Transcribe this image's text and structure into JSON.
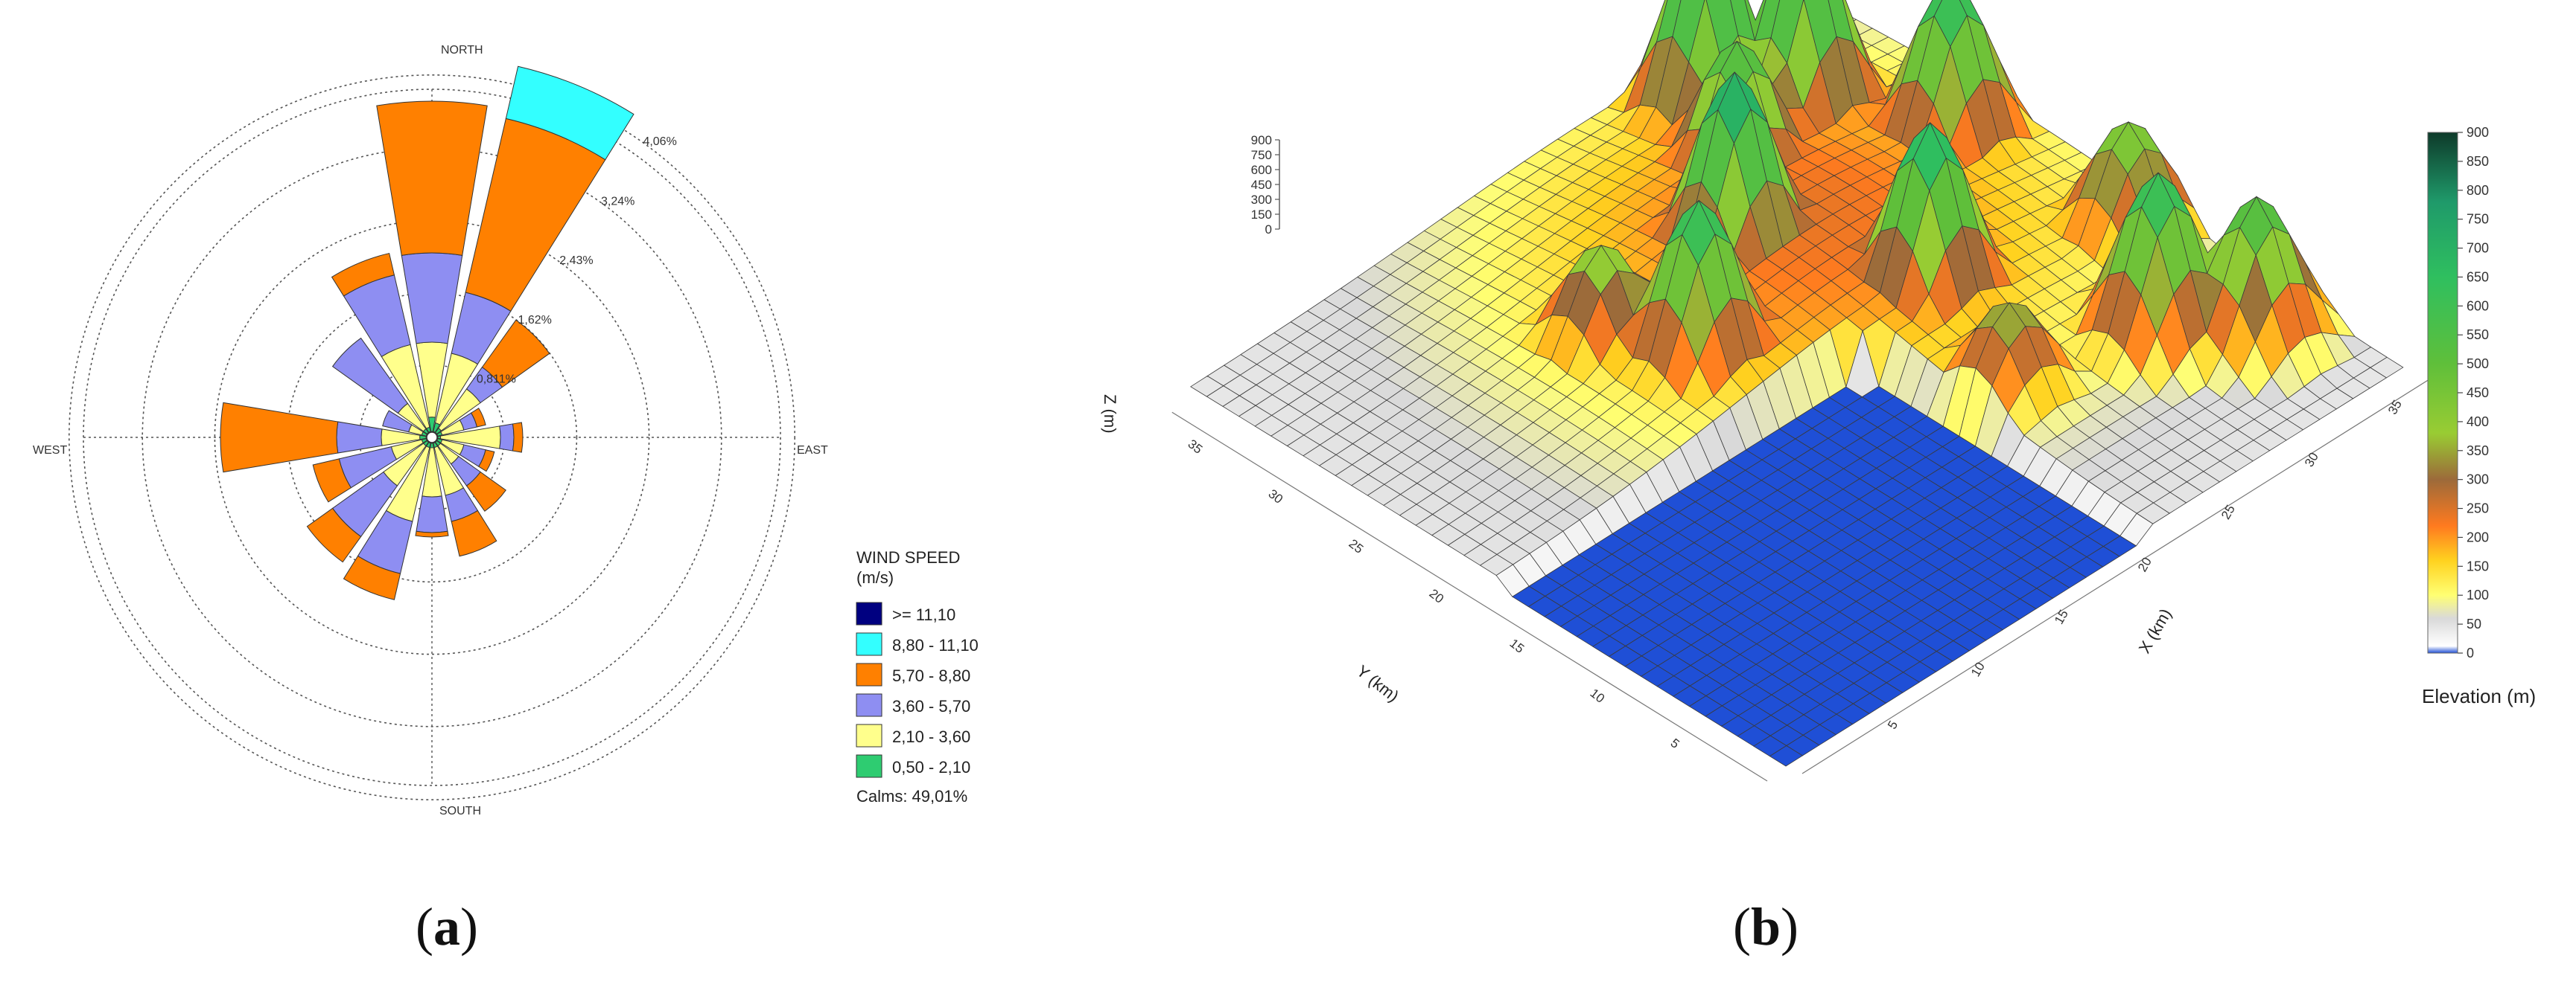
{
  "panels": {
    "a": {
      "caption_open": "(",
      "caption_letter": "a",
      "caption_close": ")"
    },
    "b": {
      "caption_open": "(",
      "caption_letter": "b",
      "caption_close": ")"
    }
  },
  "chart_data": [
    {
      "type": "wind-rose",
      "title": "",
      "directions": [
        "N",
        "NNE",
        "NE",
        "ENE",
        "E",
        "ESE",
        "SE",
        "SSE",
        "S",
        "SSW",
        "SW",
        "WSW",
        "W",
        "WNW",
        "NW",
        "NNW"
      ],
      "direction_labels": {
        "north": "NORTH",
        "east": "EAST",
        "south": "SOUTH",
        "west": "WEST"
      },
      "ring_labels": [
        "0,811%",
        "1,62%",
        "2,43%",
        "3,24%",
        "4,06%"
      ],
      "ring_values": [
        0.811,
        1.62,
        2.43,
        3.24,
        4.06
      ],
      "ring_label_angle_deg": 35,
      "legend": {
        "title_line1": "WIND SPEED",
        "title_line2": "(m/s)",
        "calms_label": "Calms: 49,01%",
        "calms_percent": 49.01
      },
      "speed_classes": [
        {
          "label": "0,50 - 2,10",
          "color": "#2ecc71"
        },
        {
          "label": "2,10 - 3,60",
          "color": "#ffff8c"
        },
        {
          "label": "3,60 - 5,70",
          "color": "#8e8ef2"
        },
        {
          "label": "5,70 - 8,80",
          "color": "#ff8000"
        },
        {
          "label": "8,80 - 11,10",
          "color": "#33ffff"
        },
        {
          "label": ">= 11,10",
          "color": "#000080"
        }
      ],
      "sectors": [
        {
          "direction": "N",
          "cumulative": [
            0.16,
            1.0,
            2.0,
            3.7,
            3.7,
            3.7
          ]
        },
        {
          "direction": "NNE",
          "cumulative": [
            0.1,
            0.9,
            1.6,
            3.6,
            4.2,
            4.2
          ]
        },
        {
          "direction": "NE",
          "cumulative": [
            0.06,
            0.6,
            0.9,
            1.55,
            1.55,
            1.55
          ]
        },
        {
          "direction": "ENE",
          "cumulative": [
            0.05,
            0.3,
            0.45,
            0.55,
            0.55,
            0.55
          ]
        },
        {
          "direction": "E",
          "cumulative": [
            0.03,
            0.7,
            0.85,
            0.95,
            0.95,
            0.95
          ]
        },
        {
          "direction": "ESE",
          "cumulative": [
            0.05,
            0.3,
            0.55,
            0.65,
            0.65,
            0.65
          ]
        },
        {
          "direction": "SE",
          "cumulative": [
            0.05,
            0.3,
            0.6,
            0.95,
            0.95,
            0.95
          ]
        },
        {
          "direction": "SSE",
          "cumulative": [
            0.05,
            0.6,
            0.9,
            1.3,
            1.3,
            1.3
          ]
        },
        {
          "direction": "S",
          "cumulative": [
            0.05,
            0.6,
            1.0,
            1.05,
            1.05,
            1.05
          ]
        },
        {
          "direction": "SSW",
          "cumulative": [
            0.05,
            0.9,
            1.5,
            1.8,
            1.8,
            1.8
          ]
        },
        {
          "direction": "SW",
          "cumulative": [
            0.05,
            0.6,
            1.3,
            1.65,
            1.65,
            1.65
          ]
        },
        {
          "direction": "WSW",
          "cumulative": [
            0.05,
            0.4,
            1.0,
            1.3,
            1.3,
            1.3
          ]
        },
        {
          "direction": "W",
          "cumulative": [
            0.07,
            0.5,
            1.0,
            2.3,
            2.3,
            2.3
          ]
        },
        {
          "direction": "WNW",
          "cumulative": [
            0.05,
            0.2,
            0.5,
            0.5,
            0.5,
            0.5
          ]
        },
        {
          "direction": "NW",
          "cumulative": [
            0.05,
            0.4,
            1.3,
            1.3,
            1.3,
            1.3
          ]
        },
        {
          "direction": "NNW",
          "cumulative": [
            0.05,
            1.0,
            1.8,
            2.05,
            2.05,
            2.05
          ]
        }
      ]
    },
    {
      "type": "surface3d",
      "title": "",
      "xlabel": "X (km)",
      "ylabel": "Y (km)",
      "zlabel": "Z (m)",
      "x_ticks": [
        "5",
        "10",
        "15",
        "20",
        "25",
        "30",
        "35"
      ],
      "y_ticks": [
        "5",
        "10",
        "15",
        "20",
        "25",
        "30",
        "35"
      ],
      "z_ticks": [
        "0",
        "150",
        "300",
        "450",
        "600",
        "750",
        "900"
      ],
      "xlim": [
        0,
        37
      ],
      "ylim": [
        0,
        37
      ],
      "zlim": [
        0,
        900
      ],
      "colorbar": {
        "label": "Elevation (m)",
        "ticks": [
          "0",
          "50",
          "100",
          "150",
          "200",
          "250",
          "300",
          "350",
          "400",
          "450",
          "500",
          "550",
          "600",
          "650",
          "700",
          "750",
          "800",
          "850",
          "900"
        ],
        "stops": [
          {
            "value": 0,
            "color": "#1f4fd6"
          },
          {
            "value": 12,
            "color": "#ffffff"
          },
          {
            "value": 60,
            "color": "#d9d9d9"
          },
          {
            "value": 100,
            "color": "#ffff73"
          },
          {
            "value": 160,
            "color": "#ffd21f"
          },
          {
            "value": 220,
            "color": "#ff7a1f"
          },
          {
            "value": 300,
            "color": "#9c6a3a"
          },
          {
            "value": 380,
            "color": "#99cc33"
          },
          {
            "value": 500,
            "color": "#5fbf3a"
          },
          {
            "value": 650,
            "color": "#2fbf5f"
          },
          {
            "value": 780,
            "color": "#1f9a6a"
          },
          {
            "value": 900,
            "color": "#0e3a2a"
          }
        ]
      },
      "peaks": [
        {
          "x": 28,
          "y": 34,
          "elevation_m": 820
        },
        {
          "x": 31,
          "y": 31,
          "elevation_m": 800
        },
        {
          "x": 34,
          "y": 25,
          "elevation_m": 700
        },
        {
          "x": 22,
          "y": 26,
          "elevation_m": 800
        },
        {
          "x": 31,
          "y": 9,
          "elevation_m": 700
        },
        {
          "x": 26,
          "y": 18,
          "elevation_m": 750
        },
        {
          "x": 34,
          "y": 6,
          "elevation_m": 600
        },
        {
          "x": 16,
          "y": 22,
          "elevation_m": 700
        },
        {
          "x": 35,
          "y": 15,
          "elevation_m": 500
        },
        {
          "x": 14,
          "y": 26,
          "elevation_m": 450
        },
        {
          "x": 26,
          "y": 30,
          "elevation_m": 600
        },
        {
          "x": 24,
          "y": 11,
          "elevation_m": 400
        }
      ],
      "sea_area": {
        "x_max_km": 22,
        "y_max_km": 18,
        "elevation_m": 0
      }
    }
  ]
}
